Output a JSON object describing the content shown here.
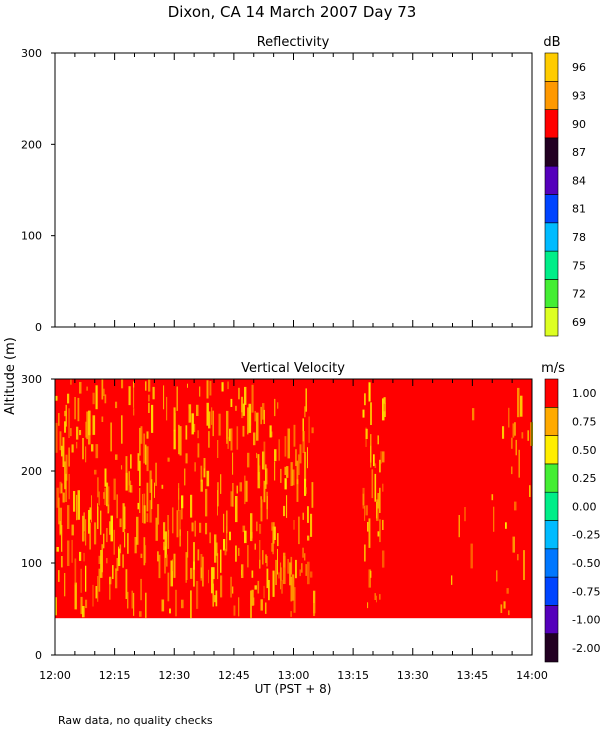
{
  "figure": {
    "title": "Dixon, CA 14 March 2007  Day  73",
    "footnote": "Raw data, no quality checks"
  },
  "chart_data": [
    {
      "type": "heatmap",
      "title": "Reflectivity",
      "ylabel": "Altitude (m)",
      "ylim": [
        0,
        300
      ],
      "yticks": [
        0,
        100,
        200,
        300
      ],
      "x_start": "12:00",
      "x_end": "14:00",
      "colorbar": {
        "units": "dB",
        "labels": [
          "69",
          "72",
          "75",
          "78",
          "81",
          "84",
          "87",
          "90",
          "93",
          "96"
        ],
        "colors": [
          "#ddff22",
          "#44ee33",
          "#00ee88",
          "#00bbff",
          "#0044ff",
          "#5500bb",
          "#220022",
          "#ff0000",
          "#ff9900",
          "#ffcc00"
        ]
      },
      "values": []
    },
    {
      "type": "heatmap",
      "title": "Vertical Velocity",
      "xlabel": "UT  (PST + 8)",
      "ylabel": "Altitude (m)",
      "ylim": [
        0,
        300
      ],
      "yticks": [
        0,
        100,
        200,
        300
      ],
      "xticks": [
        "12:00",
        "12:15",
        "12:30",
        "12:45",
        "13:00",
        "13:15",
        "13:30",
        "13:45",
        "14:00"
      ],
      "data_altitude_range": [
        40,
        300
      ],
      "colorbar": {
        "units": "m/s",
        "labels": [
          "-2.00",
          "-1.00",
          "-0.75",
          "-0.50",
          "-0.25",
          "0.00",
          "0.25",
          "0.50",
          "0.75",
          "1.00"
        ],
        "colors": [
          "#220022",
          "#5500bb",
          "#0044ff",
          "#0077ff",
          "#00bbff",
          "#00ee88",
          "#44ee33",
          "#ffee00",
          "#ffaa00",
          "#ff0000"
        ]
      },
      "dominant_value": "1.00",
      "speckle_colors": [
        "#ff9900",
        "#ffcc00",
        "#ffee00"
      ],
      "speckle_density": [
        {
          "start": "12:00",
          "end": "13:05",
          "density": 0.28
        },
        {
          "start": "13:05",
          "end": "13:17",
          "density": 0.02
        },
        {
          "start": "13:17",
          "end": "13:23",
          "density": 0.3
        },
        {
          "start": "13:23",
          "end": "13:38",
          "density": 0.01
        },
        {
          "start": "13:38",
          "end": "13:50",
          "density": 0.05
        },
        {
          "start": "13:50",
          "end": "14:00",
          "density": 0.18
        }
      ]
    }
  ]
}
